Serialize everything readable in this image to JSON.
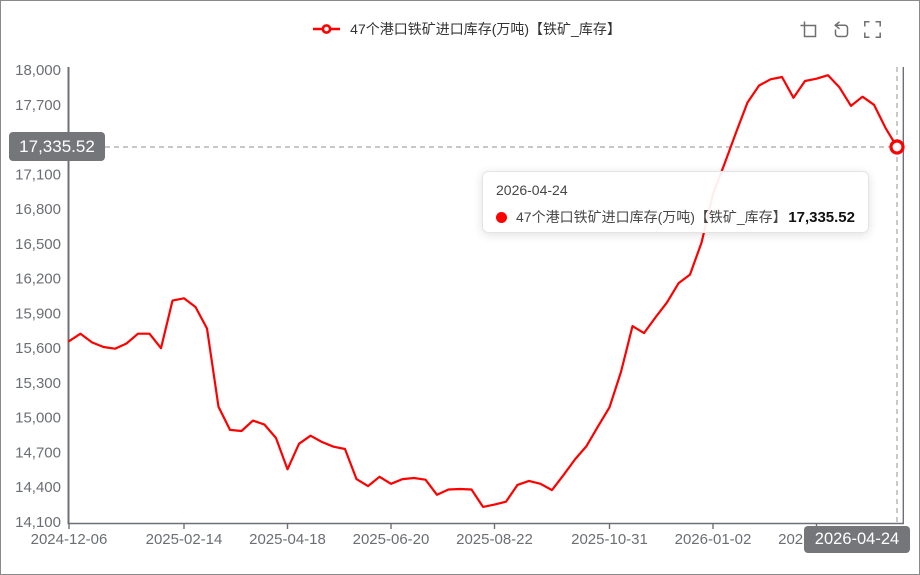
{
  "legend": {
    "label": "47个港口铁矿进口库存(万吨)【铁矿_库存】",
    "color": "#ff0000"
  },
  "toolbox": {
    "icons": [
      "box-zoom",
      "restore",
      "fullscreen"
    ]
  },
  "tooltip": {
    "date": "2026-04-24",
    "series_label": "47个港口铁矿进口库存(万吨)【铁矿_库存】",
    "value": "17,335.52"
  },
  "axis_pointer": {
    "y_label": "17,335.52",
    "x_label": "2026-04-24",
    "badge_bg": "#75767a"
  },
  "chart_data": {
    "type": "line",
    "title": "",
    "legend_position": "top-center",
    "grid": false,
    "ylim": [
      14100,
      18000
    ],
    "y_ticks": [
      {
        "value": 14100,
        "label": "14,100"
      },
      {
        "value": 14400,
        "label": "14,400"
      },
      {
        "value": 14700,
        "label": "14,700"
      },
      {
        "value": 15000,
        "label": "15,000"
      },
      {
        "value": 15300,
        "label": "15,300"
      },
      {
        "value": 15600,
        "label": "15,600"
      },
      {
        "value": 15900,
        "label": "15,900"
      },
      {
        "value": 16200,
        "label": "16,200"
      },
      {
        "value": 16500,
        "label": "16,500"
      },
      {
        "value": 16800,
        "label": "16,800"
      },
      {
        "value": 17100,
        "label": "17,100"
      },
      {
        "value": 17400,
        "label": "17,400"
      },
      {
        "value": 17700,
        "label": "17,700"
      },
      {
        "value": 18000,
        "label": "18,000"
      }
    ],
    "x_ticks": [
      {
        "i": 0,
        "label": "2024-12-06"
      },
      {
        "i": 10,
        "label": "2025-02-14"
      },
      {
        "i": 19,
        "label": "2025-04-18"
      },
      {
        "i": 28,
        "label": "2025-06-20"
      },
      {
        "i": 37,
        "label": "2025-08-22"
      },
      {
        "i": 47,
        "label": "2025-10-31"
      },
      {
        "i": 56,
        "label": "2026-01-02"
      },
      {
        "i": 65,
        "label": "2026-03-06",
        "occluded_by_badge": true
      }
    ],
    "series": [
      {
        "name": "47个港口铁矿进口库存(万吨)【铁矿_库存】",
        "color": "#ff0000",
        "values": [
          15660,
          15725,
          15650,
          15610,
          15595,
          15640,
          15725,
          15725,
          15600,
          16010,
          16030,
          15955,
          15770,
          15095,
          14895,
          14885,
          14975,
          14940,
          14825,
          14555,
          14775,
          14845,
          14790,
          14750,
          14730,
          14470,
          14410,
          14490,
          14430,
          14470,
          14480,
          14465,
          14335,
          14380,
          14385,
          14380,
          14230,
          14250,
          14275,
          14420,
          14455,
          14430,
          14375,
          14505,
          14640,
          14755,
          14925,
          15090,
          15395,
          15790,
          15730,
          15865,
          15995,
          16160,
          16235,
          16510,
          16930,
          17190,
          17460,
          17720,
          17865,
          17920,
          17940,
          17760,
          17905,
          17925,
          17955,
          17850,
          17690,
          17770,
          17700,
          17500,
          17335.52
        ]
      }
    ],
    "highlight": {
      "index": 72,
      "date": "2026-04-24",
      "value": 17335.52,
      "value_label": "17,335.52"
    },
    "axis_color": "#6E7079",
    "label_color": "#6b6e73",
    "crosshair_color": "#a6a6a6"
  }
}
